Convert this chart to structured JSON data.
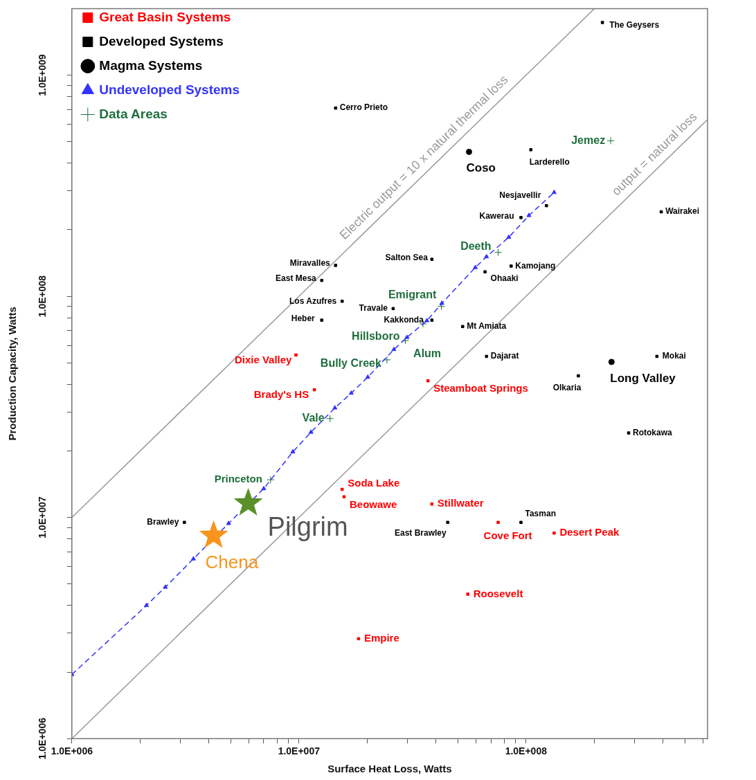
{
  "chart_data": {
    "type": "scatter",
    "xlabel": "Surface Heat Loss, Watts",
    "ylabel": "Production Capacity, Watts",
    "log": "xy",
    "legend": "top left",
    "xlim": [
      1000000,
      630000000
    ],
    "ylim": [
      1000000,
      2000000000
    ],
    "xticks": [
      {
        "value": 1000000,
        "label": "1.0E+006"
      },
      {
        "value": 2000000,
        "label": null
      },
      {
        "value": 3000000,
        "label": null
      },
      {
        "value": 4000000,
        "label": null
      },
      {
        "value": 5000000,
        "label": null
      },
      {
        "value": 6000000,
        "label": null
      },
      {
        "value": 7000000,
        "label": null
      },
      {
        "value": 8000000,
        "label": null
      },
      {
        "value": 9000000,
        "label": null
      },
      {
        "value": 10000000,
        "label": "1.0E+007"
      },
      {
        "value": 20000000,
        "label": null
      },
      {
        "value": 30000000,
        "label": null
      },
      {
        "value": 40000000,
        "label": null
      },
      {
        "value": 50000000,
        "label": null
      },
      {
        "value": 60000000,
        "label": null
      },
      {
        "value": 70000000,
        "label": null
      },
      {
        "value": 80000000,
        "label": null
      },
      {
        "value": 90000000,
        "label": null
      },
      {
        "value": 100000000,
        "label": "1.0E+008"
      },
      {
        "value": 200000000,
        "label": null
      },
      {
        "value": 300000000,
        "label": null
      },
      {
        "value": 400000000,
        "label": null
      },
      {
        "value": 500000000,
        "label": null
      },
      {
        "value": 600000000,
        "label": null
      }
    ],
    "yticks": [
      {
        "value": 1000000,
        "label": "1.0E+006"
      },
      {
        "value": 2000000,
        "label": null
      },
      {
        "value": 3000000,
        "label": null
      },
      {
        "value": 4000000,
        "label": null
      },
      {
        "value": 5000000,
        "label": null
      },
      {
        "value": 6000000,
        "label": null
      },
      {
        "value": 7000000,
        "label": null
      },
      {
        "value": 8000000,
        "label": null
      },
      {
        "value": 9000000,
        "label": null
      },
      {
        "value": 10000000,
        "label": "1.0E+007"
      },
      {
        "value": 20000000,
        "label": null
      },
      {
        "value": 30000000,
        "label": null
      },
      {
        "value": 40000000,
        "label": null
      },
      {
        "value": 50000000,
        "label": null
      },
      {
        "value": 60000000,
        "label": null
      },
      {
        "value": 70000000,
        "label": null
      },
      {
        "value": 80000000,
        "label": null
      },
      {
        "value": 90000000,
        "label": null
      },
      {
        "value": 100000000,
        "label": "1.0E+008"
      },
      {
        "value": 200000000,
        "label": null
      },
      {
        "value": 300000000,
        "label": null
      },
      {
        "value": 400000000,
        "label": null
      },
      {
        "value": 500000000,
        "label": null
      },
      {
        "value": 600000000,
        "label": null
      },
      {
        "value": 700000000,
        "label": null
      },
      {
        "value": 800000000,
        "label": null
      },
      {
        "value": 900000000,
        "label": null
      },
      {
        "value": 1000000000,
        "label": "1.0E+009"
      }
    ],
    "series": [
      {
        "name": "Great Basin Systems",
        "type": "scatter",
        "color": "#ff0000",
        "marker": "square",
        "x": [
          9700000,
          11700000,
          37000000,
          15500000,
          15800000,
          38500000,
          75400000,
          133000000,
          55400000,
          18300000
        ],
        "values": [
          54300000,
          37800000,
          41500000,
          13400000,
          12400000,
          11500000,
          9500000,
          8500000,
          4500000,
          2830000
        ]
      },
      {
        "name": "Developed Systems",
        "type": "scatter",
        "color": "#000000",
        "marker": "square",
        "x": [
          217000000,
          14500000,
          105000000,
          123000000,
          95000000,
          394000000,
          14500000,
          12600000,
          38500000,
          86000000,
          66000000,
          15500000,
          26000000,
          12600000,
          38500000,
          52600000,
          67000000,
          377000000,
          170000000,
          283000000,
          3130000,
          45200000,
          95000000
        ],
        "values": [
          1730000000,
          710000000,
          460000000,
          257000000,
          227000000,
          241000000,
          138000000,
          118000000,
          147000000,
          137000000,
          129000000,
          95000000,
          88000000,
          78000000,
          78000000,
          73000000,
          53500000,
          53500000,
          43700000,
          24100000,
          9500000,
          9500000,
          9500000
        ]
      },
      {
        "name": "Magma Systems",
        "type": "scatter",
        "color": "#000000",
        "marker": "circle",
        "x": [
          56100000,
          238000000
        ],
        "values": [
          450000000,
          50500000
        ]
      },
      {
        "name": "Undeveloped Systems",
        "type": "line",
        "color": "#3333ff",
        "marker": "triangle",
        "line_style": "dashed",
        "x": [
          1000000,
          2130000,
          2580000,
          3430000,
          4900000,
          7000000,
          9400000,
          11300000,
          14400000,
          17000000,
          20100000,
          26200000,
          29900000,
          36600000,
          42600000,
          59800000,
          67000000,
          84000000,
          103000000,
          133000000
        ],
        "values": [
          1950000,
          4000000,
          4840000,
          6500000,
          9400000,
          13500000,
          19800000,
          24300000,
          31300000,
          36500000,
          43100000,
          57500000,
          65200000,
          77600000,
          93000000,
          135000000,
          151000000,
          185000000,
          232000000,
          295000000
        ]
      },
      {
        "name": "Data Areas",
        "type": "scatter",
        "color": "#1e6e3c",
        "marker": "cross",
        "x": [
          236000000,
          75400000,
          42400000,
          35200000,
          29400000,
          24400000,
          13700000,
          7500000
        ],
        "values": [
          505000000,
          158000000,
          90000000,
          75000000,
          63000000,
          51600000,
          28000000,
          14800000
        ]
      },
      {
        "type": "scatter",
        "color": "#f7941d",
        "marker": "star",
        "x": [
          4210000
        ],
        "values": [
          8280000
        ]
      },
      {
        "type": "scatter",
        "color": "#5a8f29",
        "marker": "star",
        "x": [
          5980000
        ],
        "values": [
          11600000
        ]
      },
      {
        "name": "Electric output = 10 x natural thermal loss",
        "type": "line",
        "color": "#999999",
        "marker": "none",
        "line_style": "solid",
        "x": [
          1000000,
          200000000
        ],
        "values": [
          10000000,
          2000000000
        ]
      },
      {
        "name": "output = natural loss",
        "type": "line",
        "color": "#999999",
        "marker": "none",
        "line_style": "solid",
        "x": [
          1000000,
          630000000
        ],
        "values": [
          1000000,
          630000000
        ]
      }
    ],
    "annotations": [
      {
        "text": "Jemez",
        "x": 236000000,
        "y": 505000000
      },
      {
        "text": "Deeth",
        "x": 75400000,
        "y": 158000000
      },
      {
        "text": "Emigrant",
        "x": 42400000,
        "y": 90000000
      },
      {
        "text": "Alum",
        "x": 35200000,
        "y": 75000000
      },
      {
        "text": "Hillsboro",
        "x": 29400000,
        "y": 63000000
      },
      {
        "text": "Bully Creek",
        "x": 24400000,
        "y": 51600000
      },
      {
        "text": "Vale",
        "x": 13700000,
        "y": 28000000
      },
      {
        "text": "Princeton",
        "x": 7500000,
        "y": 14800000
      },
      {
        "text": "Dixie Valley",
        "x": 9700000,
        "y": 54300000
      },
      {
        "text": "Brady's HS",
        "x": 11700000,
        "y": 37800000
      },
      {
        "text": "Steamboat Springs",
        "x": 37000000,
        "y": 41500000
      },
      {
        "text": "Soda Lake",
        "x": 15500000,
        "y": 13400000
      },
      {
        "text": "Beowawe",
        "x": 15800000,
        "y": 12400000
      },
      {
        "text": "Stillwater",
        "x": 38500000,
        "y": 11500000
      },
      {
        "text": "Cove Fort",
        "x": 75400000,
        "y": 9500000
      },
      {
        "text": "Desert Peak",
        "x": 133000000,
        "y": 8500000
      },
      {
        "text": "Roosevelt",
        "x": 55400000,
        "y": 4500000
      },
      {
        "text": "Empire",
        "x": 18300000,
        "y": 2830000
      },
      {
        "text": "The Geysers",
        "x": 217000000,
        "y": 1730000000
      },
      {
        "text": "Cerro Prieto",
        "x": 14500000,
        "y": 710000000
      },
      {
        "text": "Larderello",
        "x": 105000000,
        "y": 460000000
      },
      {
        "text": "Nesjavellir",
        "x": 123000000,
        "y": 257000000
      },
      {
        "text": "Kawerau",
        "x": 95000000,
        "y": 227000000
      },
      {
        "text": "Wairakei",
        "x": 394000000,
        "y": 241000000
      },
      {
        "text": "Miravalles",
        "x": 14500000,
        "y": 138000000
      },
      {
        "text": "East Mesa",
        "x": 12600000,
        "y": 118000000
      },
      {
        "text": "Salton Sea",
        "x": 38500000,
        "y": 147000000
      },
      {
        "text": "Kamojang",
        "x": 86000000,
        "y": 137000000
      },
      {
        "text": "Ohaaki",
        "x": 66000000,
        "y": 129000000
      },
      {
        "text": "Los Azufres",
        "x": 15500000,
        "y": 95000000
      },
      {
        "text": "Travale",
        "x": 26000000,
        "y": 88000000
      },
      {
        "text": "Heber",
        "x": 12600000,
        "y": 78000000
      },
      {
        "text": "Kakkonda",
        "x": 38500000,
        "y": 78000000
      },
      {
        "text": "Mt Amiata",
        "x": 52600000,
        "y": 73000000
      },
      {
        "text": "Dajarat",
        "x": 67000000,
        "y": 53500000
      },
      {
        "text": "Mokai",
        "x": 377000000,
        "y": 53500000
      },
      {
        "text": "Olkaria",
        "x": 170000000,
        "y": 43700000
      },
      {
        "text": "Rotokawa",
        "x": 283000000,
        "y": 24100000
      },
      {
        "text": "Brawley",
        "x": 3130000,
        "y": 9500000
      },
      {
        "text": "East Brawley",
        "x": 45200000,
        "y": 9500000
      },
      {
        "text": "Tasman",
        "x": 95000000,
        "y": 9500000
      },
      {
        "text": "Coso",
        "x": 56100000,
        "y": 450000000
      },
      {
        "text": "Long Valley",
        "x": 238000000,
        "y": 50500000
      },
      {
        "text": "Chena",
        "x": 4210000,
        "y": 8280000
      },
      {
        "text": "Pilgrim",
        "x": 5980000,
        "y": 11600000
      }
    ]
  }
}
